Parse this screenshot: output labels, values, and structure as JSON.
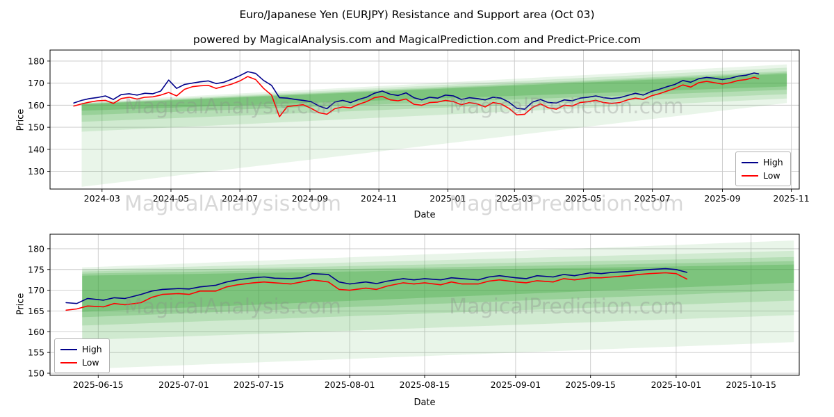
{
  "titles": {
    "main": "Euro/Japanese Yen (EURJPY) Resistance and Support area (Oct 03)",
    "sub": "powered by MagicalAnalysis.com and MagicalPrediction.com and Predict-Price.com"
  },
  "watermarks": {
    "left": "MagicalAnalysis.com",
    "right": "MagicalPrediction.com"
  },
  "legend": {
    "high": "High",
    "low": "Low"
  },
  "axes": {
    "price_label": "Price",
    "date_label": "Date"
  },
  "colors": {
    "high": "#00008b",
    "low": "#ff0000",
    "band": "#2ca02c",
    "grid": "#c9c9c9",
    "frame": "#000000"
  },
  "chart_data": [
    {
      "type": "line",
      "name": "EURJPY daily history with resistance/support fan",
      "xlabel": "Date",
      "ylabel": "Price",
      "xlim": [
        "2024-01-15",
        "2025-11-08"
      ],
      "ylim": [
        122,
        185
      ],
      "x_ticks": [
        "2024-03",
        "2024-05",
        "2024-07",
        "2024-09",
        "2024-11",
        "2025-01",
        "2025-03",
        "2025-05",
        "2025-07",
        "2025-09",
        "2025-11"
      ],
      "y_ticks": [
        130,
        140,
        150,
        160,
        170,
        180
      ],
      "grid": true,
      "legend_position": "center right",
      "series": [
        {
          "name": "High",
          "color": "#00008b",
          "dates": [
            "2024-02-05",
            "2024-02-12",
            "2024-02-19",
            "2024-02-26",
            "2024-03-04",
            "2024-03-11",
            "2024-03-18",
            "2024-03-25",
            "2024-04-01",
            "2024-04-08",
            "2024-04-15",
            "2024-04-22",
            "2024-04-29",
            "2024-05-06",
            "2024-05-13",
            "2024-05-20",
            "2024-05-27",
            "2024-06-03",
            "2024-06-10",
            "2024-06-17",
            "2024-06-24",
            "2024-07-01",
            "2024-07-08",
            "2024-07-15",
            "2024-07-22",
            "2024-07-29",
            "2024-08-05",
            "2024-08-12",
            "2024-08-19",
            "2024-08-26",
            "2024-09-02",
            "2024-09-09",
            "2024-09-16",
            "2024-09-23",
            "2024-09-30",
            "2024-10-07",
            "2024-10-14",
            "2024-10-21",
            "2024-10-28",
            "2024-11-04",
            "2024-11-11",
            "2024-11-18",
            "2024-11-25",
            "2024-12-02",
            "2024-12-09",
            "2024-12-16",
            "2024-12-23",
            "2024-12-30",
            "2025-01-06",
            "2025-01-13",
            "2025-01-20",
            "2025-01-27",
            "2025-02-03",
            "2025-02-10",
            "2025-02-17",
            "2025-02-24",
            "2025-03-03",
            "2025-03-10",
            "2025-03-17",
            "2025-03-24",
            "2025-03-31",
            "2025-04-07",
            "2025-04-14",
            "2025-04-21",
            "2025-04-28",
            "2025-05-05",
            "2025-05-12",
            "2025-05-19",
            "2025-05-26",
            "2025-06-02",
            "2025-06-09",
            "2025-06-16",
            "2025-06-23",
            "2025-06-30",
            "2025-07-07",
            "2025-07-14",
            "2025-07-21",
            "2025-07-28",
            "2025-08-04",
            "2025-08-11",
            "2025-08-18",
            "2025-08-25",
            "2025-09-01",
            "2025-09-08",
            "2025-09-15",
            "2025-09-22",
            "2025-09-29",
            "2025-10-03"
          ],
          "values": [
            161.0,
            162.2,
            163.0,
            163.5,
            164.2,
            162.6,
            164.8,
            165.2,
            164.6,
            165.4,
            165.2,
            166.4,
            171.4,
            167.6,
            169.4,
            170.0,
            170.6,
            171.0,
            169.8,
            170.4,
            171.8,
            173.4,
            175.2,
            174.4,
            171.2,
            169.0,
            163.4,
            163.2,
            162.6,
            162.2,
            161.6,
            159.6,
            158.4,
            161.4,
            162.2,
            161.2,
            162.6,
            163.6,
            165.4,
            166.4,
            165.0,
            164.4,
            165.6,
            163.4,
            162.4,
            163.6,
            163.2,
            164.6,
            164.2,
            162.6,
            163.4,
            163.0,
            162.4,
            163.6,
            163.2,
            161.4,
            158.6,
            158.2,
            161.4,
            162.6,
            161.2,
            161.0,
            162.4,
            162.0,
            163.2,
            163.6,
            164.2,
            163.4,
            163.0,
            163.4,
            164.4,
            165.4,
            164.6,
            166.2,
            167.2,
            168.4,
            169.4,
            171.2,
            170.4,
            172.0,
            172.6,
            172.2,
            171.6,
            172.2,
            173.2,
            173.6,
            174.6,
            174.2
          ]
        },
        {
          "name": "Low",
          "color": "#ff0000",
          "dates": [
            "2024-02-05",
            "2024-02-12",
            "2024-02-19",
            "2024-02-26",
            "2024-03-04",
            "2024-03-11",
            "2024-03-18",
            "2024-03-25",
            "2024-04-01",
            "2024-04-08",
            "2024-04-15",
            "2024-04-22",
            "2024-04-29",
            "2024-05-06",
            "2024-05-13",
            "2024-05-20",
            "2024-05-27",
            "2024-06-03",
            "2024-06-10",
            "2024-06-17",
            "2024-06-24",
            "2024-07-01",
            "2024-07-08",
            "2024-07-15",
            "2024-07-22",
            "2024-07-29",
            "2024-08-05",
            "2024-08-12",
            "2024-08-19",
            "2024-08-26",
            "2024-09-02",
            "2024-09-09",
            "2024-09-16",
            "2024-09-23",
            "2024-09-30",
            "2024-10-07",
            "2024-10-14",
            "2024-10-21",
            "2024-10-28",
            "2024-11-04",
            "2024-11-11",
            "2024-11-18",
            "2024-11-25",
            "2024-12-02",
            "2024-12-09",
            "2024-12-16",
            "2024-12-23",
            "2024-12-30",
            "2025-01-06",
            "2025-01-13",
            "2025-01-20",
            "2025-01-27",
            "2025-02-03",
            "2025-02-10",
            "2025-02-17",
            "2025-02-24",
            "2025-03-03",
            "2025-03-10",
            "2025-03-17",
            "2025-03-24",
            "2025-03-31",
            "2025-04-07",
            "2025-04-14",
            "2025-04-21",
            "2025-04-28",
            "2025-05-05",
            "2025-05-12",
            "2025-05-19",
            "2025-05-26",
            "2025-06-02",
            "2025-06-09",
            "2025-06-16",
            "2025-06-23",
            "2025-06-30",
            "2025-07-07",
            "2025-07-14",
            "2025-07-21",
            "2025-07-28",
            "2025-08-04",
            "2025-08-11",
            "2025-08-18",
            "2025-08-25",
            "2025-09-01",
            "2025-09-08",
            "2025-09-15",
            "2025-09-22",
            "2025-09-29",
            "2025-10-03"
          ],
          "values": [
            159.6,
            160.6,
            161.4,
            162.0,
            162.2,
            160.8,
            163.0,
            163.6,
            162.8,
            163.6,
            163.8,
            164.6,
            165.8,
            164.2,
            167.2,
            168.4,
            168.8,
            169.0,
            167.6,
            168.6,
            169.6,
            171.0,
            173.0,
            171.6,
            167.6,
            164.6,
            154.8,
            159.4,
            159.8,
            160.2,
            158.6,
            156.6,
            155.9,
            158.4,
            159.2,
            158.8,
            160.4,
            161.6,
            163.4,
            164.0,
            162.4,
            162.0,
            162.8,
            160.4,
            160.0,
            161.2,
            161.4,
            162.2,
            161.6,
            160.2,
            161.2,
            160.6,
            159.2,
            161.2,
            160.6,
            158.6,
            155.6,
            155.9,
            159.0,
            160.6,
            158.8,
            158.2,
            160.0,
            159.6,
            161.2,
            161.6,
            162.2,
            161.2,
            160.8,
            161.2,
            162.4,
            163.2,
            162.6,
            164.2,
            165.2,
            166.4,
            167.6,
            169.2,
            168.2,
            170.2,
            170.8,
            170.2,
            169.6,
            170.2,
            171.2,
            171.6,
            172.6,
            172.0
          ]
        }
      ],
      "bands": [
        {
          "x0": "2024-02-12",
          "x1": "2025-10-28",
          "y0": [
            123.0,
            161.5
          ],
          "y1": [
            161.0,
            178.5
          ],
          "opacity": 0.1
        },
        {
          "x0": "2024-02-12",
          "x1": "2025-10-28",
          "y0": [
            148.0,
            161.0
          ],
          "y1": [
            163.0,
            177.0
          ],
          "opacity": 0.13
        },
        {
          "x0": "2024-02-12",
          "x1": "2025-10-28",
          "y0": [
            152.5,
            160.8
          ],
          "y1": [
            165.0,
            175.5
          ],
          "opacity": 0.16
        },
        {
          "x0": "2024-02-12",
          "x1": "2025-10-28",
          "y0": [
            155.5,
            160.6
          ],
          "y1": [
            167.0,
            174.8
          ],
          "opacity": 0.2
        },
        {
          "x0": "2024-02-12",
          "x1": "2025-10-28",
          "y0": [
            157.5,
            160.4
          ],
          "y1": [
            168.5,
            174.2
          ],
          "opacity": 0.25
        }
      ]
    },
    {
      "type": "line",
      "name": "EURJPY recent zoom with resistance/support fan",
      "xlabel": "Date",
      "ylabel": "Price",
      "xlim": [
        "2025-06-06",
        "2025-10-24"
      ],
      "ylim": [
        149.5,
        183.5
      ],
      "x_ticks": [
        "2025-06-15",
        "2025-07-01",
        "2025-07-15",
        "2025-08-01",
        "2025-08-15",
        "2025-09-01",
        "2025-09-15",
        "2025-10-01",
        "2025-10-15"
      ],
      "y_ticks": [
        150,
        155,
        160,
        165,
        170,
        175,
        180
      ],
      "grid": true,
      "legend_position": "lower left",
      "series": [
        {
          "name": "High",
          "color": "#00008b",
          "dates": [
            "2025-06-09",
            "2025-06-11",
            "2025-06-13",
            "2025-06-16",
            "2025-06-18",
            "2025-06-20",
            "2025-06-23",
            "2025-06-25",
            "2025-06-27",
            "2025-06-30",
            "2025-07-02",
            "2025-07-04",
            "2025-07-07",
            "2025-07-09",
            "2025-07-11",
            "2025-07-14",
            "2025-07-16",
            "2025-07-18",
            "2025-07-21",
            "2025-07-23",
            "2025-07-25",
            "2025-07-28",
            "2025-07-30",
            "2025-08-01",
            "2025-08-04",
            "2025-08-06",
            "2025-08-08",
            "2025-08-11",
            "2025-08-13",
            "2025-08-15",
            "2025-08-18",
            "2025-08-20",
            "2025-08-22",
            "2025-08-25",
            "2025-08-27",
            "2025-08-29",
            "2025-09-01",
            "2025-09-03",
            "2025-09-05",
            "2025-09-08",
            "2025-09-10",
            "2025-09-12",
            "2025-09-15",
            "2025-09-17",
            "2025-09-19",
            "2025-09-22",
            "2025-09-24",
            "2025-09-26",
            "2025-09-29",
            "2025-10-01",
            "2025-10-03"
          ],
          "values": [
            167.0,
            166.8,
            168.0,
            167.6,
            168.2,
            168.0,
            169.0,
            169.8,
            170.2,
            170.4,
            170.3,
            170.8,
            171.2,
            172.0,
            172.5,
            173.0,
            173.2,
            172.9,
            172.8,
            173.0,
            174.0,
            173.8,
            172.0,
            171.5,
            172.0,
            171.6,
            172.2,
            172.8,
            172.5,
            172.8,
            172.5,
            173.0,
            172.8,
            172.5,
            173.2,
            173.5,
            173.0,
            172.8,
            173.5,
            173.2,
            173.8,
            173.5,
            174.2,
            174.0,
            174.3,
            174.5,
            174.8,
            175.0,
            175.2,
            175.0,
            174.3
          ]
        },
        {
          "name": "Low",
          "color": "#ff0000",
          "dates": [
            "2025-06-09",
            "2025-06-11",
            "2025-06-13",
            "2025-06-16",
            "2025-06-18",
            "2025-06-20",
            "2025-06-23",
            "2025-06-25",
            "2025-06-27",
            "2025-06-30",
            "2025-07-02",
            "2025-07-04",
            "2025-07-07",
            "2025-07-09",
            "2025-07-11",
            "2025-07-14",
            "2025-07-16",
            "2025-07-18",
            "2025-07-21",
            "2025-07-23",
            "2025-07-25",
            "2025-07-28",
            "2025-07-30",
            "2025-08-01",
            "2025-08-04",
            "2025-08-06",
            "2025-08-08",
            "2025-08-11",
            "2025-08-13",
            "2025-08-15",
            "2025-08-18",
            "2025-08-20",
            "2025-08-22",
            "2025-08-25",
            "2025-08-27",
            "2025-08-29",
            "2025-09-01",
            "2025-09-03",
            "2025-09-05",
            "2025-09-08",
            "2025-09-10",
            "2025-09-12",
            "2025-09-15",
            "2025-09-17",
            "2025-09-19",
            "2025-09-22",
            "2025-09-24",
            "2025-09-26",
            "2025-09-29",
            "2025-10-01",
            "2025-10-03"
          ],
          "values": [
            165.2,
            165.5,
            166.2,
            166.0,
            166.8,
            166.5,
            167.0,
            168.3,
            169.0,
            169.2,
            169.0,
            169.8,
            169.8,
            170.8,
            171.3,
            171.8,
            172.0,
            171.8,
            171.5,
            172.0,
            172.5,
            172.0,
            170.2,
            170.0,
            170.5,
            170.2,
            171.0,
            171.8,
            171.5,
            171.8,
            171.3,
            172.0,
            171.5,
            171.5,
            172.2,
            172.5,
            172.0,
            171.8,
            172.3,
            172.0,
            172.8,
            172.5,
            173.0,
            173.0,
            173.2,
            173.5,
            173.8,
            174.0,
            174.2,
            174.0,
            172.7
          ]
        }
      ],
      "bands": [
        {
          "x0": "2025-06-12",
          "x1": "2025-10-23",
          "y0": [
            151.0,
            175.5
          ],
          "y1": [
            157.5,
            182.0
          ],
          "opacity": 0.1
        },
        {
          "x0": "2025-06-12",
          "x1": "2025-10-23",
          "y0": [
            158.0,
            175.0
          ],
          "y1": [
            164.0,
            179.5
          ],
          "opacity": 0.13
        },
        {
          "x0": "2025-06-12",
          "x1": "2025-10-23",
          "y0": [
            161.5,
            174.5
          ],
          "y1": [
            167.5,
            178.0
          ],
          "opacity": 0.16
        },
        {
          "x0": "2025-06-12",
          "x1": "2025-10-23",
          "y0": [
            163.5,
            174.0
          ],
          "y1": [
            170.0,
            177.0
          ],
          "opacity": 0.2
        },
        {
          "x0": "2025-06-12",
          "x1": "2025-10-23",
          "y0": [
            164.8,
            173.5
          ],
          "y1": [
            171.8,
            176.2
          ],
          "opacity": 0.25
        }
      ]
    }
  ]
}
